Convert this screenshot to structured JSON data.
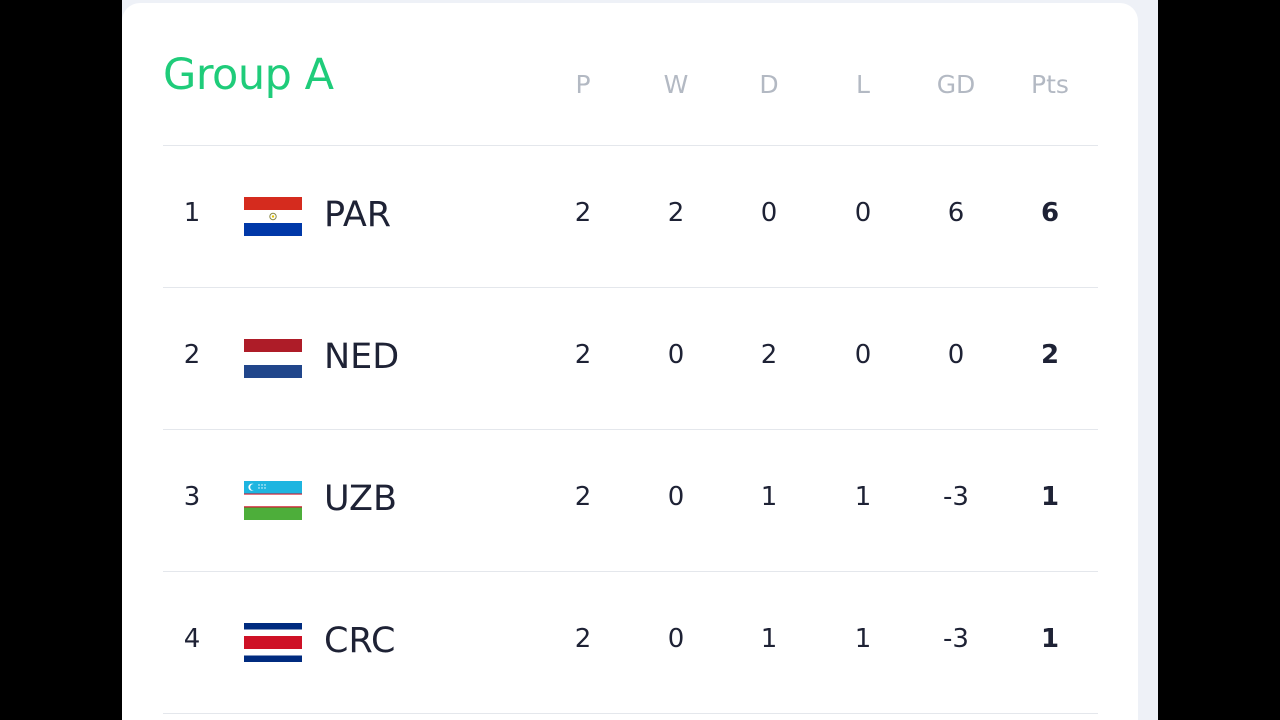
{
  "group": {
    "title": "Group A",
    "title_color": "#1fcc7a"
  },
  "columns": [
    "P",
    "W",
    "D",
    "L",
    "GD",
    "Pts"
  ],
  "rows": [
    {
      "position": "1",
      "team": "PAR",
      "flag_icon": "paraguay-flag-icon",
      "stats": [
        "2",
        "2",
        "0",
        "0",
        "6",
        "6"
      ]
    },
    {
      "position": "2",
      "team": "NED",
      "flag_icon": "netherlands-flag-icon",
      "stats": [
        "2",
        "0",
        "2",
        "0",
        "0",
        "2"
      ]
    },
    {
      "position": "3",
      "team": "UZB",
      "flag_icon": "uzbekistan-flag-icon",
      "stats": [
        "2",
        "0",
        "1",
        "1",
        "-3",
        "1"
      ]
    },
    {
      "position": "4",
      "team": "CRC",
      "flag_icon": "costa-rica-flag-icon",
      "stats": [
        "2",
        "0",
        "1",
        "1",
        "-3",
        "1"
      ]
    }
  ]
}
